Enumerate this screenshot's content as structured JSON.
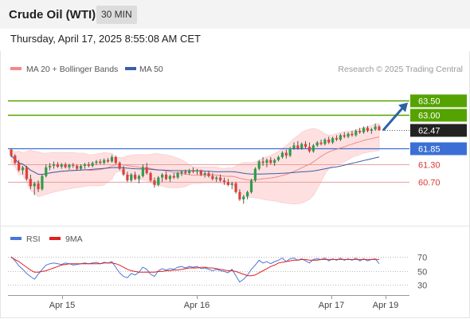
{
  "header": {
    "title": "Crude Oil (WTI)",
    "timeframe": "30 MIN"
  },
  "date_line": "Thursday, April 17, 2025 8:55:08 AM CET",
  "legend": {
    "ma20": "MA 20 + Bollinger Bands",
    "ma50": "MA 50"
  },
  "credit": "Research © 2025 Trading Central",
  "colors": {
    "candle_up": "#2e9e4a",
    "candle_down": "#e0403a",
    "ma20": "#f08a8a",
    "ma50": "#3a5ea8",
    "bb_fill": "#ffe0e0",
    "level_green": "#55a300",
    "level_blue": "#3b6fd6",
    "level_red": "#e8a0a0",
    "target_arrow": "#2b62a8",
    "rsi": "#4a77d6",
    "rsi_ma": "#e02020"
  },
  "rsi_legend": {
    "rsi": "RSI",
    "ma": "9MA"
  },
  "chart_data": [
    {
      "type": "candlestick",
      "title": "Crude Oil (WTI)",
      "timeframe": "30 MIN",
      "ylim": [
        59.5,
        64.2
      ],
      "x_ticks": [
        "Apr 15",
        "Apr 16",
        "Apr 17",
        "Apr 19"
      ],
      "last_price": "62.47",
      "levels": [
        {
          "value": "63.50",
          "kind": "resistance",
          "style": "box"
        },
        {
          "value": "63.00",
          "kind": "resistance",
          "style": "box"
        },
        {
          "value": "62.47",
          "kind": "last",
          "style": "box"
        },
        {
          "value": "61.85",
          "kind": "pivot",
          "style": "box"
        },
        {
          "value": "61.30",
          "kind": "support",
          "style": "text"
        },
        {
          "value": "60.70",
          "kind": "support",
          "style": "text"
        }
      ],
      "target_arrow": {
        "from": 62.47,
        "to": 63.5
      },
      "candles": [
        [
          61.8,
          61.85,
          61.55,
          61.6
        ],
        [
          61.6,
          61.65,
          61.3,
          61.35
        ],
        [
          61.35,
          61.45,
          61.05,
          61.1
        ],
        [
          61.1,
          61.25,
          60.95,
          61.2
        ],
        [
          61.2,
          61.25,
          60.75,
          60.8
        ],
        [
          60.8,
          60.95,
          60.45,
          60.55
        ],
        [
          60.55,
          60.7,
          60.25,
          60.65
        ],
        [
          60.65,
          60.75,
          60.35,
          60.45
        ],
        [
          60.45,
          60.95,
          60.4,
          60.9
        ],
        [
          60.9,
          61.3,
          60.85,
          61.2
        ],
        [
          61.2,
          61.35,
          61.1,
          61.25
        ],
        [
          61.25,
          61.4,
          61.15,
          61.3
        ],
        [
          61.3,
          61.38,
          61.18,
          61.22
        ],
        [
          61.22,
          61.35,
          61.15,
          61.3
        ],
        [
          61.3,
          61.36,
          61.16,
          61.2
        ],
        [
          61.2,
          61.32,
          61.12,
          61.28
        ],
        [
          61.28,
          61.35,
          61.18,
          61.25
        ],
        [
          61.25,
          61.3,
          61.1,
          61.15
        ],
        [
          61.15,
          61.3,
          61.1,
          61.25
        ],
        [
          61.25,
          61.35,
          61.15,
          61.3
        ],
        [
          61.3,
          61.38,
          61.2,
          61.25
        ],
        [
          61.25,
          61.4,
          61.2,
          61.35
        ],
        [
          61.35,
          61.45,
          61.28,
          61.4
        ],
        [
          61.4,
          61.48,
          61.3,
          61.35
        ],
        [
          61.35,
          61.5,
          61.3,
          61.45
        ],
        [
          61.45,
          61.52,
          61.35,
          61.4
        ],
        [
          61.4,
          61.62,
          61.36,
          61.55
        ],
        [
          61.55,
          61.6,
          61.3,
          61.35
        ],
        [
          61.35,
          61.4,
          61.1,
          61.15
        ],
        [
          61.15,
          61.25,
          60.9,
          60.95
        ],
        [
          60.95,
          61.05,
          60.7,
          60.75
        ],
        [
          60.75,
          61.0,
          60.7,
          60.95
        ],
        [
          60.95,
          61.05,
          60.75,
          60.8
        ],
        [
          60.8,
          60.95,
          60.65,
          60.9
        ],
        [
          60.9,
          61.3,
          60.85,
          61.2
        ],
        [
          61.2,
          61.35,
          60.95,
          61.0
        ],
        [
          61.0,
          61.05,
          60.7,
          60.75
        ],
        [
          60.75,
          60.85,
          60.5,
          60.6
        ],
        [
          60.6,
          60.9,
          60.55,
          60.85
        ],
        [
          60.85,
          61.0,
          60.7,
          60.95
        ],
        [
          60.95,
          61.05,
          60.75,
          60.8
        ],
        [
          60.8,
          60.95,
          60.7,
          60.9
        ],
        [
          60.9,
          61.0,
          60.8,
          60.85
        ],
        [
          60.85,
          61.05,
          60.8,
          61.0
        ],
        [
          61.0,
          61.1,
          60.9,
          61.05
        ],
        [
          61.05,
          61.12,
          60.95,
          61.0
        ],
        [
          61.0,
          61.15,
          60.95,
          61.1
        ],
        [
          61.1,
          61.2,
          61.0,
          61.05
        ],
        [
          61.05,
          61.15,
          60.95,
          61.1
        ],
        [
          61.1,
          61.12,
          60.9,
          60.95
        ],
        [
          60.95,
          61.05,
          60.85,
          61.0
        ],
        [
          61.0,
          61.08,
          60.85,
          60.9
        ],
        [
          60.9,
          61.0,
          60.75,
          60.8
        ],
        [
          60.8,
          60.9,
          60.7,
          60.85
        ],
        [
          60.85,
          60.95,
          60.7,
          60.75
        ],
        [
          60.75,
          60.85,
          60.6,
          60.7
        ],
        [
          60.7,
          60.8,
          60.55,
          60.6
        ],
        [
          60.6,
          60.7,
          60.45,
          60.65
        ],
        [
          60.65,
          60.7,
          60.3,
          60.35
        ],
        [
          60.35,
          60.45,
          60.05,
          60.1
        ],
        [
          60.1,
          60.25,
          59.95,
          60.2
        ],
        [
          60.2,
          60.4,
          60.1,
          60.35
        ],
        [
          60.35,
          60.8,
          60.3,
          60.75
        ],
        [
          60.75,
          61.2,
          60.7,
          61.15
        ],
        [
          61.15,
          61.45,
          61.1,
          61.4
        ],
        [
          61.4,
          61.55,
          61.25,
          61.35
        ],
        [
          61.35,
          61.5,
          61.2,
          61.45
        ],
        [
          61.45,
          61.55,
          61.3,
          61.35
        ],
        [
          61.35,
          61.5,
          61.25,
          61.45
        ],
        [
          61.45,
          61.6,
          61.4,
          61.55
        ],
        [
          61.55,
          61.75,
          61.5,
          61.7
        ],
        [
          61.7,
          61.8,
          61.5,
          61.6
        ],
        [
          61.6,
          61.9,
          61.55,
          61.85
        ],
        [
          61.85,
          62.05,
          61.8,
          61.95
        ],
        [
          61.95,
          62.1,
          61.8,
          61.85
        ],
        [
          61.85,
          62.05,
          61.8,
          62.0
        ],
        [
          62.0,
          62.1,
          61.85,
          61.9
        ],
        [
          61.9,
          62.05,
          61.7,
          61.75
        ],
        [
          61.75,
          62.0,
          61.7,
          61.95
        ],
        [
          61.95,
          62.1,
          61.9,
          62.05
        ],
        [
          62.05,
          62.15,
          61.95,
          62.0
        ],
        [
          62.0,
          62.2,
          61.95,
          62.15
        ],
        [
          62.15,
          62.25,
          62.0,
          62.05
        ],
        [
          62.05,
          62.25,
          62.0,
          62.2
        ],
        [
          62.2,
          62.3,
          62.1,
          62.15
        ],
        [
          62.15,
          62.35,
          62.1,
          62.3
        ],
        [
          62.3,
          62.4,
          62.2,
          62.25
        ],
        [
          62.25,
          62.4,
          62.2,
          62.35
        ],
        [
          62.35,
          62.45,
          62.25,
          62.3
        ],
        [
          62.3,
          62.5,
          62.25,
          62.45
        ],
        [
          62.45,
          62.55,
          62.35,
          62.4
        ],
        [
          62.4,
          62.6,
          62.35,
          62.55
        ],
        [
          62.55,
          62.62,
          62.4,
          62.45
        ],
        [
          62.45,
          62.55,
          62.35,
          62.5
        ],
        [
          62.5,
          62.7,
          62.45,
          62.6
        ],
        [
          62.6,
          62.65,
          62.45,
          62.47
        ]
      ]
    },
    {
      "type": "line",
      "title": "RSI",
      "ylim": [
        20,
        80
      ],
      "y_ticks": [
        70,
        50,
        30
      ],
      "series": [
        {
          "name": "RSI",
          "values": [
            70,
            64,
            57,
            52,
            46,
            42,
            38,
            45,
            52,
            58,
            60,
            61,
            60,
            59,
            61,
            60,
            58,
            59,
            60,
            61,
            60,
            61,
            62,
            60,
            62,
            61,
            63,
            55,
            47,
            42,
            40,
            46,
            44,
            48,
            55,
            52,
            45,
            42,
            50,
            53,
            51,
            53,
            52,
            55,
            56,
            54,
            56,
            55,
            56,
            53,
            54,
            52,
            50,
            52,
            50,
            49,
            47,
            52,
            43,
            34,
            38,
            44,
            52,
            58,
            65,
            61,
            63,
            60,
            63,
            65,
            68,
            63,
            67,
            68,
            65,
            67,
            64,
            61,
            66,
            67,
            66,
            68,
            64,
            67,
            65,
            68,
            65,
            67,
            65,
            68,
            64,
            67,
            64,
            66,
            67,
            60
          ]
        },
        {
          "name": "9MA",
          "values": [
            69,
            66,
            63,
            59,
            55,
            51,
            48,
            48,
            49,
            50,
            52,
            54,
            56,
            58,
            59,
            60,
            60,
            60,
            60,
            60,
            60,
            60,
            60,
            60,
            61,
            61,
            61,
            60,
            58,
            55,
            52,
            50,
            49,
            48,
            48,
            48,
            48,
            48,
            49,
            49,
            50,
            50,
            51,
            51,
            52,
            53,
            54,
            54,
            54,
            55,
            55,
            54,
            54,
            53,
            52,
            51,
            50,
            50,
            49,
            47,
            45,
            43,
            43,
            44,
            47,
            50,
            53,
            56,
            58,
            61,
            62,
            63,
            64,
            65,
            65,
            66,
            66,
            65,
            65,
            65,
            66,
            66,
            66,
            66,
            66,
            66,
            66,
            66,
            66,
            66,
            66,
            66,
            66,
            66,
            66,
            66
          ]
        }
      ]
    }
  ]
}
